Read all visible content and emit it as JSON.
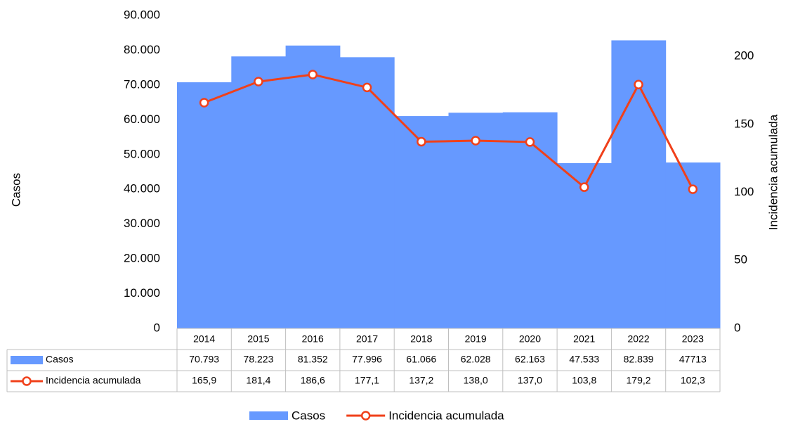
{
  "chart_data": {
    "type": "combo",
    "y_label": "Casos",
    "y2_label": "Incidencia acumulada",
    "categories": [
      "2014",
      "2015",
      "2016",
      "2017",
      "2018",
      "2019",
      "2020",
      "2021",
      "2022",
      "2023"
    ],
    "series": [
      {
        "name": "Casos",
        "type": "bar",
        "color": "#6699ff",
        "values": [
          70793,
          78223,
          81352,
          77996,
          61066,
          62028,
          62163,
          47533,
          82839,
          47713
        ],
        "value_labels": [
          "70.793",
          "78.223",
          "81.352",
          "77.996",
          "61.066",
          "62.028",
          "62.163",
          "47.533",
          "82.839",
          "47713"
        ]
      },
      {
        "name": "Incidencia acumulada",
        "type": "line",
        "axis": "y2",
        "color": "#f0401a",
        "values": [
          165.9,
          181.4,
          186.6,
          177.1,
          137.2,
          138.0,
          137.0,
          103.8,
          179.2,
          102.3
        ],
        "value_labels": [
          "165,9",
          "181,4",
          "186,6",
          "177,1",
          "137,2",
          "138,0",
          "137,0",
          "103,8",
          "179,2",
          "102,3"
        ]
      }
    ],
    "ylim": [
      0,
      90000
    ],
    "yticks": [
      {
        "value": 0,
        "label": "0"
      },
      {
        "value": 10000,
        "label": "10.000"
      },
      {
        "value": 20000,
        "label": "20.000"
      },
      {
        "value": 30000,
        "label": "30.000"
      },
      {
        "value": 40000,
        "label": "40.000"
      },
      {
        "value": 50000,
        "label": "50.000"
      },
      {
        "value": 60000,
        "label": "60.000"
      },
      {
        "value": 70000,
        "label": "70.000"
      },
      {
        "value": 80000,
        "label": "80.000"
      },
      {
        "value": 90000,
        "label": "90.000"
      }
    ],
    "y2lim": [
      0,
      230
    ],
    "y2ticks": [
      0,
      50,
      100,
      150,
      200
    ],
    "grid": false,
    "legend": "bottom"
  }
}
